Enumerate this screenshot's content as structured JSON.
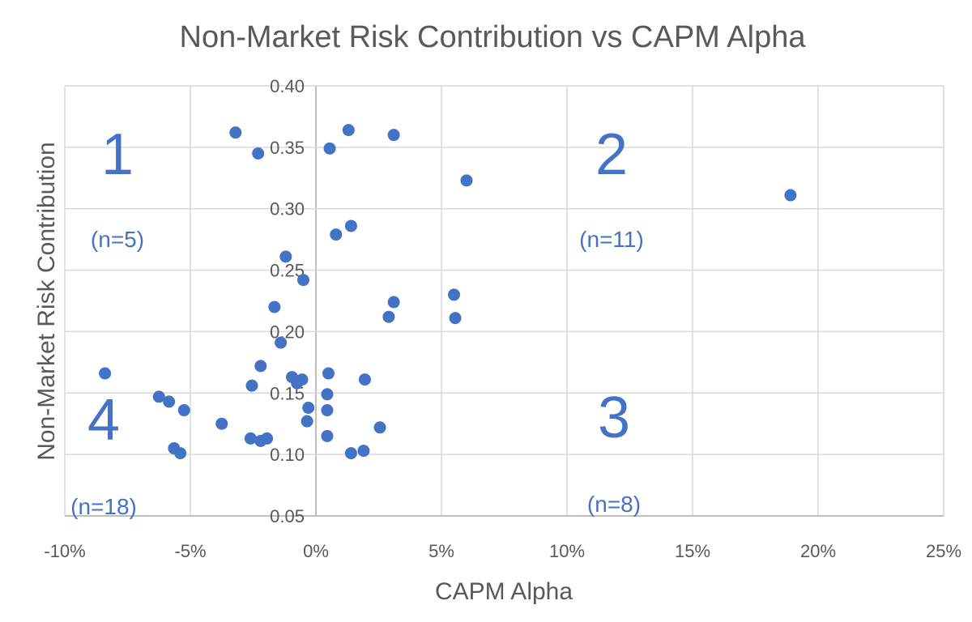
{
  "chart_data": {
    "type": "scatter",
    "title": "Non-Market Risk Contribution vs CAPM Alpha",
    "xlabel": "CAPM Alpha",
    "ylabel": "Non-Market Risk Contribution",
    "xlim": [
      -10,
      25
    ],
    "ylim": [
      0.05,
      0.4
    ],
    "x_unit": "%",
    "x_ticks": [
      "-10%",
      "-5%",
      "0%",
      "5%",
      "10%",
      "15%",
      "20%",
      "25%"
    ],
    "y_ticks": [
      "0.05",
      "0.10",
      "0.15",
      "0.20",
      "0.25",
      "0.30",
      "0.35",
      "0.40"
    ],
    "grid": true,
    "color": "#4472C4",
    "quadrant_labels": [
      {
        "number": "1",
        "count": "(n=5)"
      },
      {
        "number": "2",
        "count": "(n=11)"
      },
      {
        "number": "3",
        "count": "(n=8)"
      },
      {
        "number": "4",
        "count": "(n=18)"
      }
    ],
    "points": [
      [
        -3.2,
        0.362
      ],
      [
        -2.3,
        0.345
      ],
      [
        1.3,
        0.364
      ],
      [
        3.1,
        0.36
      ],
      [
        0.55,
        0.349
      ],
      [
        6.0,
        0.323
      ],
      [
        18.9,
        0.311
      ],
      [
        1.4,
        0.286
      ],
      [
        0.8,
        0.279
      ],
      [
        -1.2,
        0.261
      ],
      [
        -0.5,
        0.242
      ],
      [
        5.5,
        0.23
      ],
      [
        3.1,
        0.224
      ],
      [
        2.9,
        0.212
      ],
      [
        5.55,
        0.211
      ],
      [
        -1.65,
        0.22
      ],
      [
        -1.4,
        0.191
      ],
      [
        -2.2,
        0.172
      ],
      [
        -8.4,
        0.166
      ],
      [
        -2.55,
        0.156
      ],
      [
        -0.95,
        0.163
      ],
      [
        -0.75,
        0.158
      ],
      [
        -0.55,
        0.161
      ],
      [
        0.5,
        0.166
      ],
      [
        1.95,
        0.161
      ],
      [
        0.45,
        0.149
      ],
      [
        -6.25,
        0.147
      ],
      [
        -5.85,
        0.143
      ],
      [
        -5.25,
        0.136
      ],
      [
        -0.3,
        0.138
      ],
      [
        0.45,
        0.136
      ],
      [
        -0.35,
        0.127
      ],
      [
        -3.75,
        0.125
      ],
      [
        2.55,
        0.122
      ],
      [
        0.45,
        0.115
      ],
      [
        -2.6,
        0.113
      ],
      [
        -1.95,
        0.113
      ],
      [
        -2.2,
        0.111
      ],
      [
        -5.65,
        0.105
      ],
      [
        -5.4,
        0.101
      ],
      [
        1.4,
        0.101
      ],
      [
        1.9,
        0.103
      ]
    ]
  }
}
